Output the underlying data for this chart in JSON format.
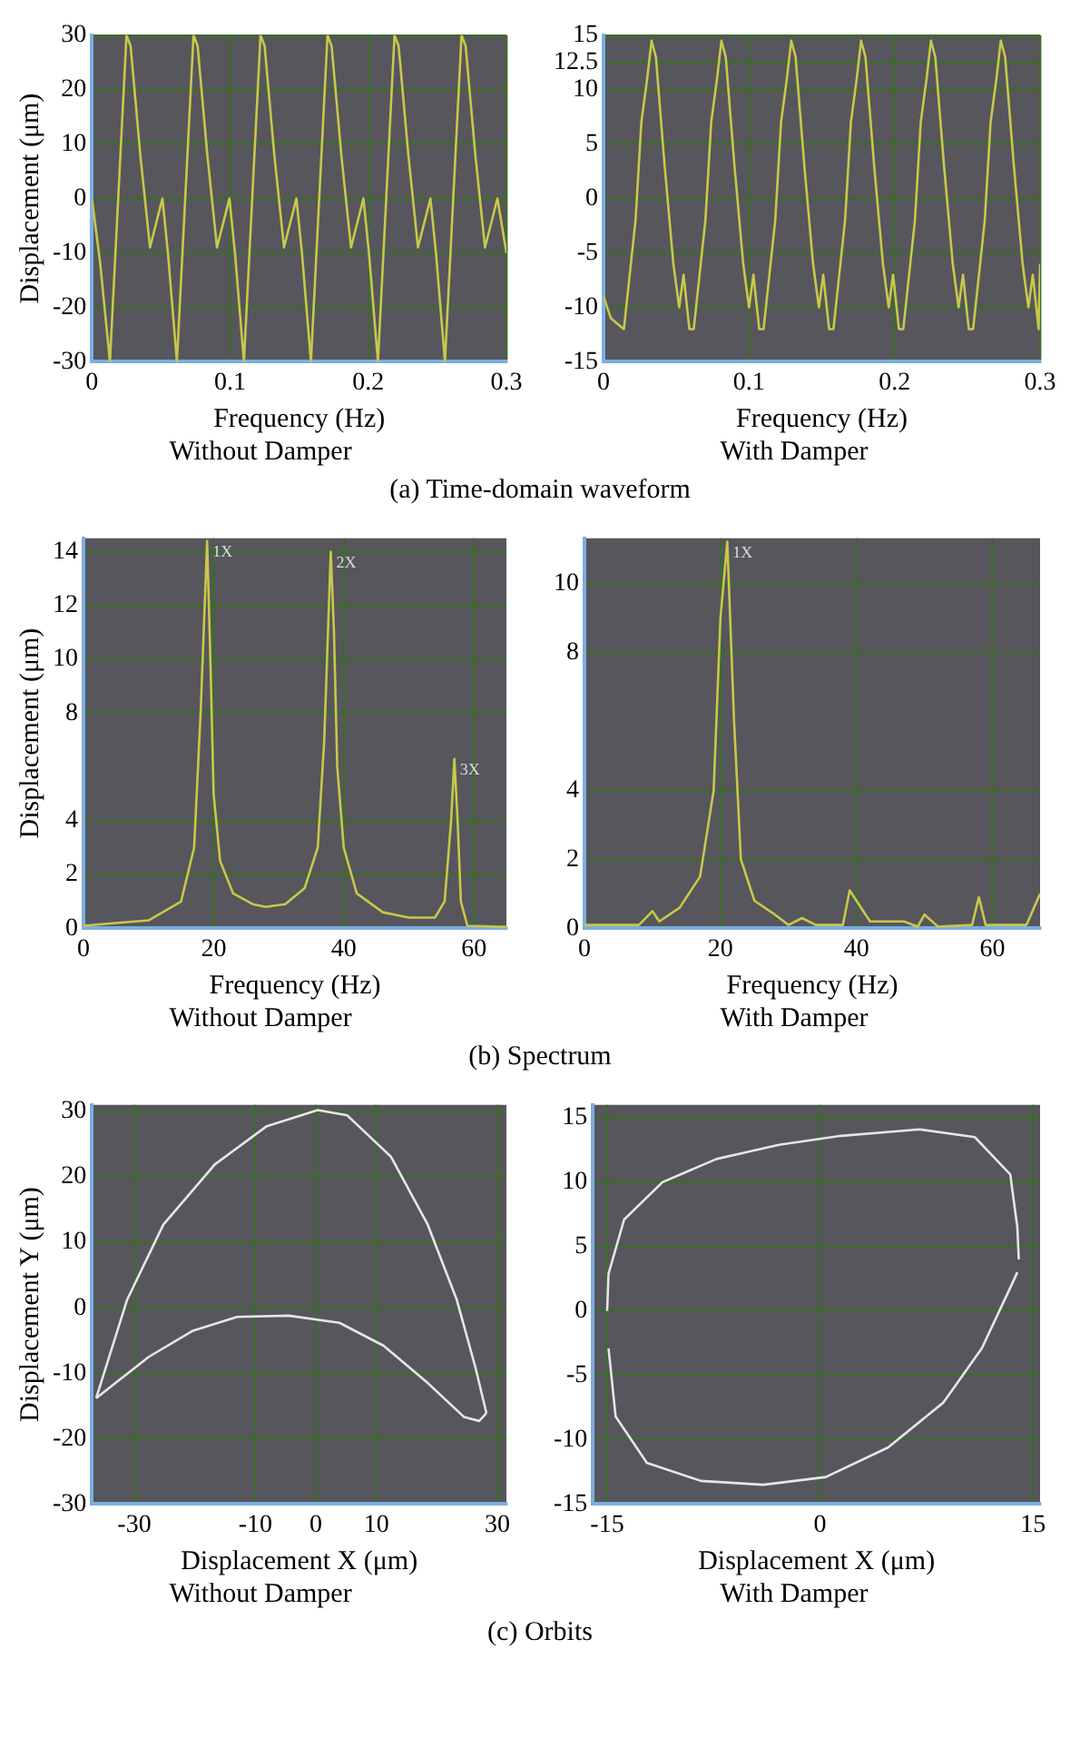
{
  "chart_data": [
    {
      "type": "line",
      "title": "Without Damper",
      "xlabel": "Frequency (Hz)",
      "ylabel": "Displacement (μm)",
      "xlim": [
        0,
        0.3
      ],
      "xticks": [
        0,
        0.1,
        0.2,
        0.3
      ],
      "ylim": [
        -30,
        30
      ],
      "yticks": [
        -30,
        -20,
        -10,
        0,
        10,
        20,
        30
      ],
      "grid": true,
      "series": [
        {
          "color": "#c8c84a",
          "x": [
            0,
            0.006,
            0.013,
            0.019,
            0.025,
            0.028,
            0.035,
            0.042,
            0.047,
            0.051,
            0.055,
            0.0615,
            0.0675,
            0.0735,
            0.0765,
            0.0835,
            0.0905,
            0.0955,
            0.0995,
            0.1035,
            0.11,
            0.116,
            0.122,
            0.125,
            0.132,
            0.139,
            0.144,
            0.148,
            0.152,
            0.1585,
            0.1645,
            0.1705,
            0.1735,
            0.1805,
            0.1875,
            0.1925,
            0.1965,
            0.2005,
            0.207,
            0.213,
            0.219,
            0.222,
            0.229,
            0.236,
            0.241,
            0.245,
            0.249,
            0.2555,
            0.2615,
            0.2675,
            0.2705,
            0.2775,
            0.2845,
            0.2895,
            0.2935,
            0.3
          ],
          "values": [
            0,
            -12,
            -30,
            0,
            30,
            28,
            8,
            -9,
            -4,
            0,
            -10,
            -30,
            0,
            30,
            28,
            8,
            -9,
            -4,
            0,
            -10,
            -30,
            0,
            30,
            28,
            8,
            -9,
            -4,
            0,
            -10,
            -30,
            0,
            30,
            28,
            8,
            -9,
            -4,
            0,
            -10,
            -30,
            0,
            30,
            28,
            8,
            -9,
            -4,
            0,
            -10,
            -30,
            0,
            30,
            28,
            8,
            -9,
            -4,
            0,
            -10
          ]
        }
      ]
    },
    {
      "type": "line",
      "title": "With Damper",
      "xlabel": "Frequency (Hz)",
      "xlim": [
        0,
        0.3
      ],
      "xticks": [
        0,
        0.1,
        0.2,
        0.3
      ],
      "ylim": [
        -15,
        15
      ],
      "yticks": [
        -15,
        -10,
        -5,
        0,
        5,
        10,
        12.5,
        15
      ],
      "grid": true,
      "annotations": [
        "(a) Time-domain waveform"
      ],
      "series": [
        {
          "color": "#c8c84a",
          "x": [
            0,
            0.005,
            0.014,
            0.022,
            0.026,
            0.03,
            0.033,
            0.036,
            0.042,
            0.048,
            0.052,
            0.055,
            0.059,
            0.062,
            0.07,
            0.074,
            0.078,
            0.081,
            0.084,
            0.09,
            0.096,
            0.1,
            0.103,
            0.107,
            0.11,
            0.118,
            0.122,
            0.126,
            0.129,
            0.132,
            0.138,
            0.144,
            0.148,
            0.151,
            0.155,
            0.158,
            0.166,
            0.17,
            0.174,
            0.177,
            0.18,
            0.186,
            0.192,
            0.196,
            0.199,
            0.203,
            0.206,
            0.214,
            0.218,
            0.222,
            0.225,
            0.228,
            0.234,
            0.24,
            0.244,
            0.247,
            0.251,
            0.254,
            0.262,
            0.266,
            0.27,
            0.273,
            0.276,
            0.282,
            0.288,
            0.292,
            0.295,
            0.299,
            0.3
          ],
          "values": [
            -9,
            -11,
            -12,
            -2,
            7,
            11,
            14.5,
            13,
            3,
            -6,
            -10,
            -7,
            -12,
            -12,
            -2,
            7,
            11,
            14.5,
            13,
            3,
            -6,
            -10,
            -7,
            -12,
            -12,
            -2,
            7,
            11,
            14.5,
            13,
            3,
            -6,
            -10,
            -7,
            -12,
            -12,
            -2,
            7,
            11,
            14.5,
            13,
            3,
            -6,
            -10,
            -7,
            -12,
            -12,
            -2,
            7,
            11,
            14.5,
            13,
            3,
            -6,
            -10,
            -7,
            -12,
            -12,
            -2,
            7,
            11,
            14.5,
            13,
            3,
            -6,
            -10,
            -7,
            -12,
            -6
          ]
        }
      ]
    },
    {
      "type": "line",
      "title": "Without Damper",
      "xlabel": "Frequency (Hz)",
      "ylabel": "Displacement (μm)",
      "xlim": [
        0,
        65
      ],
      "xticks": [
        0,
        20,
        40,
        60
      ],
      "ylim": [
        0,
        14.5
      ],
      "yticks": [
        0,
        2,
        4,
        8,
        10,
        12,
        14
      ],
      "grid": true,
      "annotations": [
        {
          "text": "1X",
          "x": 19,
          "y": 14.4
        },
        {
          "text": "2X",
          "x": 38,
          "y": 14
        },
        {
          "text": "3X",
          "x": 57,
          "y": 6.3
        }
      ],
      "series": [
        {
          "color": "#c8c84a",
          "x": [
            0,
            10,
            15,
            17,
            18,
            19,
            19.5,
            20,
            21,
            23,
            26,
            28,
            31,
            34,
            36,
            37,
            38,
            38.5,
            39,
            40,
            42,
            46,
            50,
            54,
            55.5,
            56.5,
            57,
            57.5,
            58,
            59,
            65
          ],
          "values": [
            0.1,
            0.3,
            1,
            3,
            8,
            14.4,
            10,
            5,
            2.5,
            1.3,
            0.9,
            0.8,
            0.9,
            1.5,
            3,
            7,
            14,
            11,
            6,
            3,
            1.3,
            0.6,
            0.4,
            0.4,
            1,
            4,
            6.3,
            4,
            1,
            0.1,
            0.05
          ]
        }
      ]
    },
    {
      "type": "line",
      "title": "With Damper",
      "xlabel": "Frequency (Hz)",
      "xlim": [
        0,
        67
      ],
      "xticks": [
        0,
        20,
        40,
        60
      ],
      "ylim": [
        0,
        11.3
      ],
      "yticks": [
        0,
        2,
        4,
        8,
        10
      ],
      "grid": true,
      "annotations": [
        "(b) Spectrum",
        {
          "text": "1X",
          "x": 21,
          "y": 11.2
        }
      ],
      "series": [
        {
          "color": "#c8c84a",
          "x": [
            0,
            8,
            10,
            11,
            14,
            17,
            19,
            20,
            21,
            22,
            23,
            25,
            28,
            30,
            32,
            34,
            38,
            39,
            40,
            42,
            47,
            49,
            50,
            52,
            57,
            58,
            59,
            65,
            67
          ],
          "values": [
            0.1,
            0.1,
            0.5,
            0.2,
            0.6,
            1.5,
            4,
            9,
            11.2,
            6,
            2,
            0.8,
            0.4,
            0.1,
            0.3,
            0.1,
            0.1,
            1.1,
            0.8,
            0.2,
            0.2,
            0.05,
            0.4,
            0.05,
            0.1,
            0.9,
            0.1,
            0.1,
            1
          ]
        }
      ]
    },
    {
      "type": "line",
      "title": "Without Damper",
      "xlabel": "Displacement X (μm)",
      "ylabel": "Displacement Y (μm)",
      "xlim": [
        -37,
        31.5
      ],
      "xticks": [
        -30,
        -10,
        0,
        10,
        30
      ],
      "ylim": [
        -30,
        31
      ],
      "yticks": [
        -30,
        -20,
        -10,
        0,
        10,
        20,
        30
      ],
      "grid": true,
      "series": [
        {
          "color": "#e6e6e6",
          "x": [
            -36.3,
            -31.2,
            -25.2,
            -16.7,
            -8.2,
            0.3,
            5.2,
            12.4,
            18.5,
            23.3,
            26.4,
            28.2
          ],
          "values": [
            -13.8,
            1.2,
            12.7,
            21.9,
            27.7,
            30.2,
            29.4,
            23.1,
            12.7,
            1.2,
            -9.2,
            -16.1
          ]
        },
        {
          "color": "#e6e6e6",
          "x": [
            -36.3,
            -27.6,
            -20.3,
            -13,
            -4.5,
            3.9,
            11.2,
            18.5,
            24.5,
            27,
            28.2
          ],
          "values": [
            -13.8,
            -7.5,
            -3.5,
            -1.4,
            -1.2,
            -2.3,
            -5.8,
            -11.5,
            -16.7,
            -17.3,
            -16.1
          ]
        }
      ]
    },
    {
      "type": "line",
      "title": "With Damper",
      "xlabel": "Displacement X (μm)",
      "xlim": [
        -16,
        15.5
      ],
      "xticks": [
        -15,
        0,
        15
      ],
      "ylim": [
        -15,
        16
      ],
      "yticks": [
        -15,
        -10,
        -5,
        0,
        5,
        10,
        15
      ],
      "grid": true,
      "annotations": [
        "(c) Orbits"
      ],
      "series": [
        {
          "color": "#e6e6e6",
          "x": [
            -15,
            -14.9,
            -13.8,
            -11.1,
            -7.3,
            -2.9,
            1.5,
            7,
            10.9,
            13.4,
            13.9,
            14
          ],
          "values": [
            0,
            2.9,
            7.1,
            10,
            11.8,
            12.9,
            13.6,
            14.1,
            13.5,
            10.6,
            6.5,
            4
          ]
        },
        {
          "color": "#e6e6e6",
          "x": [
            -14.9,
            -14.4,
            -12.2,
            -8.4,
            -4,
            0.4,
            4.8,
            8.7,
            11.4,
            13.4,
            13.9
          ],
          "values": [
            -2.9,
            -8.2,
            -11.8,
            -13.2,
            -13.5,
            -12.9,
            -10.6,
            -7.1,
            -2.9,
            1.8,
            3
          ]
        }
      ]
    }
  ]
}
